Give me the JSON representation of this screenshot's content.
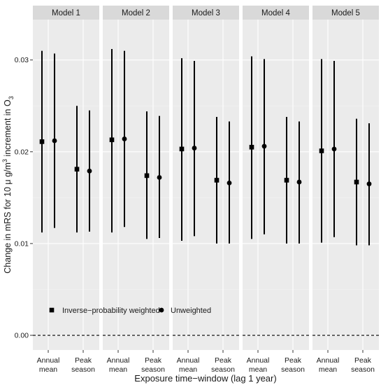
{
  "chart_data": {
    "type": "scatter",
    "subtype": "point-range (faceted)",
    "facets": [
      "Model 1",
      "Model 2",
      "Model 3",
      "Model 4",
      "Model 5"
    ],
    "categories": [
      [
        "Annual",
        "mean"
      ],
      [
        "Peak",
        "season"
      ]
    ],
    "xlabel": "Exposure time−window (lag 1 year)",
    "ylabel_main": "Change in mRS for 10 μ g/m",
    "ylabel_sup": "3",
    "ylabel_tail": " increment in O",
    "ylabel_sub": "3",
    "y_ticks": [
      0.0,
      0.01,
      0.02,
      0.03
    ],
    "y_tick_labels": [
      "0.00",
      "0.01",
      "0.02",
      "0.03"
    ],
    "ylim": [
      -0.0016,
      0.0344
    ],
    "reference_line": 0,
    "grid": true,
    "legend_position": "bottom-left, inside panel",
    "series": [
      {
        "name": "Inverse−probability weighted",
        "marker": "square",
        "points": [
          {
            "model": "Model 1",
            "window": "Annual mean",
            "y": 0.0211,
            "ymin": 0.0112,
            "ymax": 0.031
          },
          {
            "model": "Model 1",
            "window": "Peak season",
            "y": 0.0181,
            "ymin": 0.0112,
            "ymax": 0.025
          },
          {
            "model": "Model 2",
            "window": "Annual mean",
            "y": 0.0213,
            "ymin": 0.0112,
            "ymax": 0.0312
          },
          {
            "model": "Model 2",
            "window": "Peak season",
            "y": 0.0174,
            "ymin": 0.0105,
            "ymax": 0.0244
          },
          {
            "model": "Model 3",
            "window": "Annual mean",
            "y": 0.0203,
            "ymin": 0.0103,
            "ymax": 0.0302
          },
          {
            "model": "Model 3",
            "window": "Peak season",
            "y": 0.0169,
            "ymin": 0.01,
            "ymax": 0.0238
          },
          {
            "model": "Model 4",
            "window": "Annual mean",
            "y": 0.0205,
            "ymin": 0.0105,
            "ymax": 0.0304
          },
          {
            "model": "Model 4",
            "window": "Peak season",
            "y": 0.0169,
            "ymin": 0.01,
            "ymax": 0.0238
          },
          {
            "model": "Model 5",
            "window": "Annual mean",
            "y": 0.0201,
            "ymin": 0.0101,
            "ymax": 0.0301
          },
          {
            "model": "Model 5",
            "window": "Peak season",
            "y": 0.0167,
            "ymin": 0.0098,
            "ymax": 0.0236
          }
        ]
      },
      {
        "name": "Unweighted",
        "marker": "circle",
        "points": [
          {
            "model": "Model 1",
            "window": "Annual mean",
            "y": 0.0212,
            "ymin": 0.0117,
            "ymax": 0.0307
          },
          {
            "model": "Model 1",
            "window": "Peak season",
            "y": 0.0179,
            "ymin": 0.0113,
            "ymax": 0.0245
          },
          {
            "model": "Model 2",
            "window": "Annual mean",
            "y": 0.0214,
            "ymin": 0.0118,
            "ymax": 0.031
          },
          {
            "model": "Model 2",
            "window": "Peak season",
            "y": 0.0172,
            "ymin": 0.0106,
            "ymax": 0.0239
          },
          {
            "model": "Model 3",
            "window": "Annual mean",
            "y": 0.0204,
            "ymin": 0.0108,
            "ymax": 0.0299
          },
          {
            "model": "Model 3",
            "window": "Peak season",
            "y": 0.0166,
            "ymin": 0.01,
            "ymax": 0.0233
          },
          {
            "model": "Model 4",
            "window": "Annual mean",
            "y": 0.0206,
            "ymin": 0.011,
            "ymax": 0.0301
          },
          {
            "model": "Model 4",
            "window": "Peak season",
            "y": 0.0167,
            "ymin": 0.01,
            "ymax": 0.0233
          },
          {
            "model": "Model 5",
            "window": "Annual mean",
            "y": 0.0203,
            "ymin": 0.0107,
            "ymax": 0.0299
          },
          {
            "model": "Model 5",
            "window": "Peak season",
            "y": 0.0165,
            "ymin": 0.0098,
            "ymax": 0.0231
          }
        ]
      }
    ],
    "colors": {
      "panel_background": "#ebebeb",
      "strip_background": "#d9d9d9",
      "grid_major": "#ffffff",
      "grid_minor": "#f4f4f4",
      "marks": "#000000"
    }
  }
}
